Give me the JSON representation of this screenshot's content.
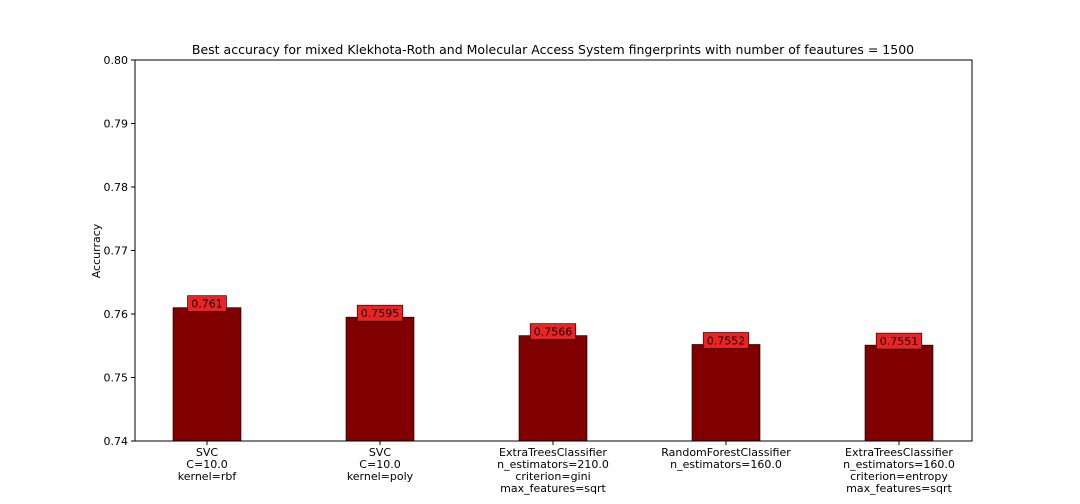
{
  "chart_data": {
    "type": "bar",
    "title": "Best accuracy for mixed Klekhota-Roth and Molecular Access System fingerprints with number of feautures = 1500",
    "xlabel": "",
    "ylabel": "Accurracy",
    "ylim": [
      0.74,
      0.8
    ],
    "yticks": [
      "0.74",
      "0.75",
      "0.76",
      "0.77",
      "0.78",
      "0.79",
      "0.80"
    ],
    "categories": [
      [
        "SVC",
        "C=10.0",
        "kernel=rbf"
      ],
      [
        "SVC",
        "C=10.0",
        "kernel=poly"
      ],
      [
        "ExtraTreesClassifier",
        "n_estimators=210.0",
        "criterion=gini",
        "max_features=sqrt"
      ],
      [
        "RandomForestClassifier",
        "n_estimators=160.0"
      ],
      [
        "ExtraTreesClassifier",
        "n_estimators=160.0",
        "criterion=entropy",
        "max_features=sqrt"
      ]
    ],
    "values": [
      0.761,
      0.7595,
      0.7566,
      0.7552,
      0.7551
    ],
    "value_labels": [
      "0.761",
      "0.7595",
      "0.7566",
      "0.7552",
      "0.7551"
    ],
    "grid": false,
    "legend": "none",
    "colors": {
      "bar": "#800000",
      "label_box": "#ee2222",
      "axis": "#000000"
    }
  }
}
